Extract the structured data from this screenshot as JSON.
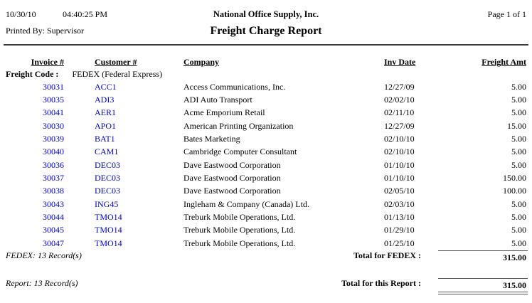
{
  "colors": {
    "link_blue": "#0000CC"
  },
  "page_header": {
    "date": "10/30/10",
    "time": "04:40:25 PM",
    "printed_by": "Printed By: Supervisor",
    "company_name": "National Office Supply, Inc.",
    "report_title": "Freight Charge Report",
    "page_info": "Page 1 of 1"
  },
  "table": {
    "columns": {
      "invoice": "Invoice #",
      "customer": "Customer #",
      "company": "Company",
      "inv_date": "Inv Date",
      "freight_amt": "Freight Amt"
    },
    "group_header": {
      "label": "Freight Code :",
      "value": "FEDEX (Federal Express)"
    },
    "rows": [
      {
        "invoice": "30031",
        "customer": "ACC1",
        "company": "Access Communications, Inc.",
        "inv_date": "12/27/09",
        "freight_amt": "5.00"
      },
      {
        "invoice": "30035",
        "customer": "ADI3",
        "company": "ADI Auto Transport",
        "inv_date": "02/02/10",
        "freight_amt": "5.00"
      },
      {
        "invoice": "30041",
        "customer": "AER1",
        "company": "Acme Emporium Retail",
        "inv_date": "02/11/10",
        "freight_amt": "5.00"
      },
      {
        "invoice": "30030",
        "customer": "APO1",
        "company": "American Printing Organization",
        "inv_date": "12/27/09",
        "freight_amt": "15.00"
      },
      {
        "invoice": "30039",
        "customer": "BAT1",
        "company": "Bates Marketing",
        "inv_date": "02/10/10",
        "freight_amt": "5.00"
      },
      {
        "invoice": "30040",
        "customer": "CAM1",
        "company": "Cambridge Computer Consultant",
        "inv_date": "02/10/10",
        "freight_amt": "5.00"
      },
      {
        "invoice": "30036",
        "customer": "DEC03",
        "company": "Dave Eastwood Corporation",
        "inv_date": "01/10/10",
        "freight_amt": "5.00"
      },
      {
        "invoice": "30037",
        "customer": "DEC03",
        "company": "Dave Eastwood Corporation",
        "inv_date": "01/10/10",
        "freight_amt": "150.00"
      },
      {
        "invoice": "30038",
        "customer": "DEC03",
        "company": "Dave Eastwood Corporation",
        "inv_date": "02/05/10",
        "freight_amt": "100.00"
      },
      {
        "invoice": "30043",
        "customer": "ING45",
        "company": "Ingleham & Company (Canada) Ltd.",
        "inv_date": "02/03/10",
        "freight_amt": "5.00"
      },
      {
        "invoice": "30044",
        "customer": "TMO14",
        "company": "Treburk Mobile Operations, Ltd.",
        "inv_date": "01/13/10",
        "freight_amt": "5.00"
      },
      {
        "invoice": "30045",
        "customer": "TMO14",
        "company": "Treburk Mobile Operations, Ltd.",
        "inv_date": "01/29/10",
        "freight_amt": "5.00"
      },
      {
        "invoice": "30047",
        "customer": "TMO14",
        "company": "Treburk Mobile Operations, Ltd.",
        "inv_date": "01/25/10",
        "freight_amt": "5.00"
      }
    ]
  },
  "group_footer": {
    "record_count": "FEDEX: 13 Record(s)",
    "total_label": "Total for FEDEX :",
    "total_amount": "315.00"
  },
  "report_footer": {
    "record_count": "Report: 13 Record(s)",
    "total_label": "Total for this Report :",
    "total_amount": "315.00"
  }
}
